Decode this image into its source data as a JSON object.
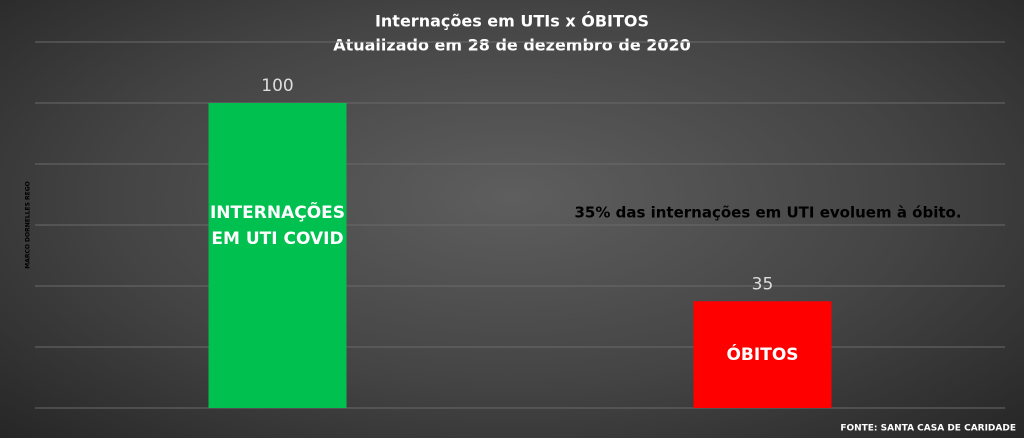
{
  "chart_data": {
    "type": "bar",
    "title": "Internações em UTIs x ÓBITOS",
    "subtitle": "Atualizado em 28 de dezembro de 2020",
    "categories": [
      "INTERNAÇÕES EM UTI COVID",
      "ÓBITOS"
    ],
    "values": [
      100,
      35
    ],
    "colors": [
      "#00c050",
      "#ff0000"
    ],
    "ylim": [
      0,
      120
    ],
    "yticks": [
      0,
      20,
      40,
      60,
      80,
      100,
      120
    ],
    "grid": true,
    "annotation": "35% das internações em UTI evoluem à óbito.",
    "author": "MARCO DORNELLES REGO",
    "source": "FONTE: SANTA CASA DE CARIDADE"
  }
}
